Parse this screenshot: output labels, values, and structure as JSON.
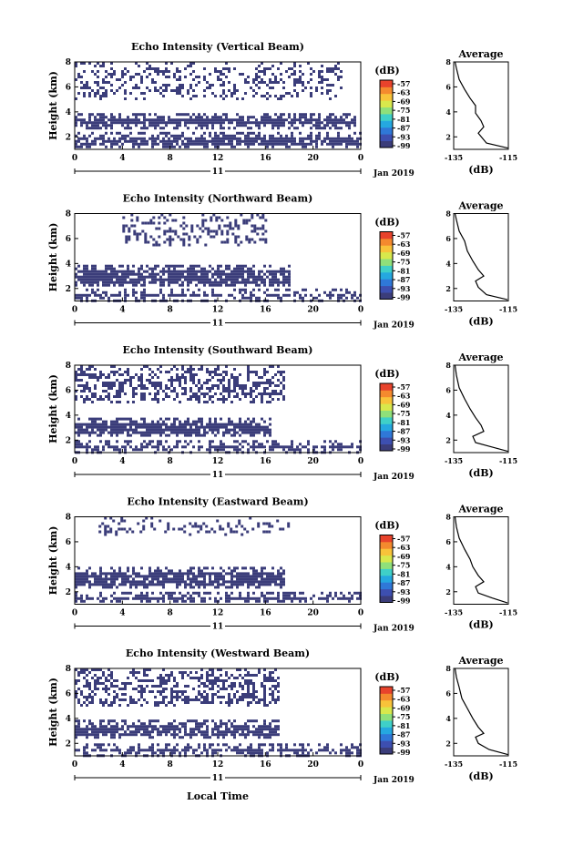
{
  "colors": {
    "echo_fill": "#3b3d7a",
    "colorbar": [
      "#3b3d7a",
      "#3d4fb0",
      "#2f78d8",
      "#25a8e0",
      "#3fd0c8",
      "#8fe07a",
      "#d8e84c",
      "#f8c33a",
      "#f48a2e",
      "#e8432c"
    ]
  },
  "figure": {
    "xlabel": "Local Time",
    "date_label": "Jan 2019",
    "day_label": "11",
    "ylabel": "Height (km)",
    "cb_unit": "(dB)",
    "avg_title": "Average",
    "avg_xlabel": "(dB)"
  },
  "chart_data": [
    {
      "type": "heatmap",
      "title": "Echo Intensity (Vertical Beam)",
      "xlim": [
        0,
        24
      ],
      "ylim": [
        1,
        8
      ],
      "xticks": [
        "0",
        "4",
        "8",
        "12",
        "16",
        "20",
        "0"
      ],
      "yticks": [
        "2",
        "4",
        "6",
        "8"
      ],
      "colorbar_ticks": [
        "-57",
        "-63",
        "-69",
        "-75",
        "-81",
        "-87",
        "-93",
        "-99"
      ],
      "bands": [
        {
          "t0": 0,
          "t1": 23.9,
          "h0": 1.2,
          "h1": 2.4,
          "fill": 0.8
        },
        {
          "t0": 0,
          "t1": 23.5,
          "h0": 2.8,
          "h1": 3.9,
          "fill": 0.9
        },
        {
          "t0": 0,
          "t1": 22.4,
          "h0": 5.0,
          "h1": 8.0,
          "fill": 0.3
        }
      ],
      "average": {
        "xlim": [
          -135,
          -115
        ],
        "xticks": [
          "-135",
          "-115"
        ],
        "yticks": [
          "2",
          "4",
          "6",
          "8"
        ],
        "profile": [
          [
            -115.2,
            1.1
          ],
          [
            -123,
            1.5
          ],
          [
            -126,
            2.3
          ],
          [
            -124,
            2.8
          ],
          [
            -125,
            3.3
          ],
          [
            -127,
            3.9
          ],
          [
            -127,
            4.5
          ],
          [
            -129,
            5.1
          ],
          [
            -131,
            5.8
          ],
          [
            -133,
            6.6
          ],
          [
            -134,
            7.5
          ],
          [
            -134.5,
            8
          ]
        ]
      }
    },
    {
      "type": "heatmap",
      "title": "Echo Intensity (Northward Beam)",
      "xlim": [
        0,
        24
      ],
      "ylim": [
        1,
        8
      ],
      "xticks": [
        "0",
        "4",
        "8",
        "12",
        "16",
        "20",
        "0"
      ],
      "yticks": [
        "2",
        "4",
        "6",
        "8"
      ],
      "colorbar_ticks": [
        "-57",
        "-63",
        "-69",
        "-75",
        "-81",
        "-87",
        "-93",
        "-99"
      ],
      "bands": [
        {
          "t0": 0,
          "t1": 23.9,
          "h0": 1.1,
          "h1": 2.0,
          "fill": 0.6
        },
        {
          "t0": 0,
          "t1": 18.0,
          "h0": 2.2,
          "h1": 3.9,
          "fill": 0.85
        },
        {
          "t0": 4.0,
          "t1": 16.0,
          "h0": 5.5,
          "h1": 8.0,
          "fill": 0.3
        }
      ],
      "average": {
        "xlim": [
          -135,
          -115
        ],
        "xticks": [
          "-135",
          "-115"
        ],
        "yticks": [
          "2",
          "4",
          "6",
          "8"
        ],
        "profile": [
          [
            -115.3,
            1.1
          ],
          [
            -123,
            1.5
          ],
          [
            -126,
            2.1
          ],
          [
            -127,
            2.6
          ],
          [
            -124,
            3.0
          ],
          [
            -126,
            3.5
          ],
          [
            -128,
            4.2
          ],
          [
            -130,
            5.0
          ],
          [
            -131,
            5.8
          ],
          [
            -133,
            6.6
          ],
          [
            -134,
            7.5
          ],
          [
            -134.5,
            8
          ]
        ]
      }
    },
    {
      "type": "heatmap",
      "title": "Echo Intensity (Southward Beam)",
      "xlim": [
        0,
        24
      ],
      "ylim": [
        1,
        8
      ],
      "xticks": [
        "0",
        "4",
        "8",
        "12",
        "16",
        "20",
        "0"
      ],
      "yticks": [
        "2",
        "4",
        "6",
        "8"
      ],
      "colorbar_ticks": [
        "-57",
        "-63",
        "-69",
        "-75",
        "-81",
        "-87",
        "-93",
        "-99"
      ],
      "bands": [
        {
          "t0": 0,
          "t1": 23.9,
          "h0": 1.1,
          "h1": 2.0,
          "fill": 0.75
        },
        {
          "t0": 0,
          "t1": 16.5,
          "h0": 2.4,
          "h1": 3.8,
          "fill": 0.85
        },
        {
          "t0": 0,
          "t1": 17.5,
          "h0": 5.0,
          "h1": 8.0,
          "fill": 0.45
        }
      ],
      "average": {
        "xlim": [
          -135,
          -115
        ],
        "xticks": [
          "-135",
          "-115"
        ],
        "yticks": [
          "2",
          "4",
          "6",
          "8"
        ],
        "profile": [
          [
            -115.2,
            1.1
          ],
          [
            -122,
            1.5
          ],
          [
            -127,
            1.8
          ],
          [
            -128,
            2.3
          ],
          [
            -124,
            2.7
          ],
          [
            -125,
            3.2
          ],
          [
            -127,
            3.8
          ],
          [
            -129,
            4.5
          ],
          [
            -131,
            5.3
          ],
          [
            -133,
            6.2
          ],
          [
            -134,
            7.2
          ],
          [
            -134.5,
            8
          ]
        ]
      }
    },
    {
      "type": "heatmap",
      "title": "Echo Intensity (Eastward Beam)",
      "xlim": [
        0,
        24
      ],
      "ylim": [
        1,
        8
      ],
      "xticks": [
        "0",
        "4",
        "8",
        "12",
        "16",
        "20",
        "0"
      ],
      "yticks": [
        "2",
        "4",
        "6",
        "8"
      ],
      "colorbar_ticks": [
        "-57",
        "-63",
        "-69",
        "-75",
        "-81",
        "-87",
        "-93",
        "-99"
      ],
      "bands": [
        {
          "t0": 0,
          "t1": 23.9,
          "h0": 1.2,
          "h1": 2.0,
          "fill": 0.7
        },
        {
          "t0": 0,
          "t1": 17.5,
          "h0": 2.3,
          "h1": 4.0,
          "fill": 0.8
        },
        {
          "t0": 2.0,
          "t1": 18.0,
          "h0": 6.5,
          "h1": 8.0,
          "fill": 0.25
        }
      ],
      "average": {
        "xlim": [
          -135,
          -115
        ],
        "xticks": [
          "-135",
          "-115"
        ],
        "yticks": [
          "2",
          "4",
          "6",
          "8"
        ],
        "profile": [
          [
            -115.3,
            1.1
          ],
          [
            -121,
            1.5
          ],
          [
            -126,
            1.9
          ],
          [
            -127,
            2.4
          ],
          [
            -124,
            2.8
          ],
          [
            -126,
            3.3
          ],
          [
            -128,
            4.0
          ],
          [
            -129,
            4.6
          ],
          [
            -131,
            5.4
          ],
          [
            -133,
            6.3
          ],
          [
            -134,
            7.2
          ],
          [
            -134.5,
            8
          ]
        ]
      }
    },
    {
      "type": "heatmap",
      "title": "Echo Intensity (Westward Beam)",
      "xlim": [
        0,
        24
      ],
      "ylim": [
        1,
        8
      ],
      "xticks": [
        "0",
        "4",
        "8",
        "12",
        "16",
        "20",
        "0"
      ],
      "yticks": [
        "2",
        "4",
        "6",
        "8"
      ],
      "colorbar_ticks": [
        "-57",
        "-63",
        "-69",
        "-75",
        "-81",
        "-87",
        "-93",
        "-99"
      ],
      "bands": [
        {
          "t0": 0,
          "t1": 23.9,
          "h0": 1.1,
          "h1": 2.0,
          "fill": 0.75
        },
        {
          "t0": 0,
          "t1": 17.0,
          "h0": 2.5,
          "h1": 3.9,
          "fill": 0.8
        },
        {
          "t0": 0,
          "t1": 17.0,
          "h0": 5.0,
          "h1": 8.0,
          "fill": 0.45
        }
      ],
      "average": {
        "xlim": [
          -135,
          -115
        ],
        "xticks": [
          "-135",
          "-115"
        ],
        "yticks": [
          "2",
          "4",
          "6",
          "8"
        ],
        "profile": [
          [
            -115.2,
            1.1
          ],
          [
            -122,
            1.5
          ],
          [
            -126,
            2.0
          ],
          [
            -127,
            2.5
          ],
          [
            -124,
            2.8
          ],
          [
            -126,
            3.3
          ],
          [
            -128,
            4.0
          ],
          [
            -130,
            4.8
          ],
          [
            -132,
            5.6
          ],
          [
            -133,
            6.5
          ],
          [
            -134,
            7.3
          ],
          [
            -134.5,
            8
          ]
        ]
      }
    }
  ]
}
